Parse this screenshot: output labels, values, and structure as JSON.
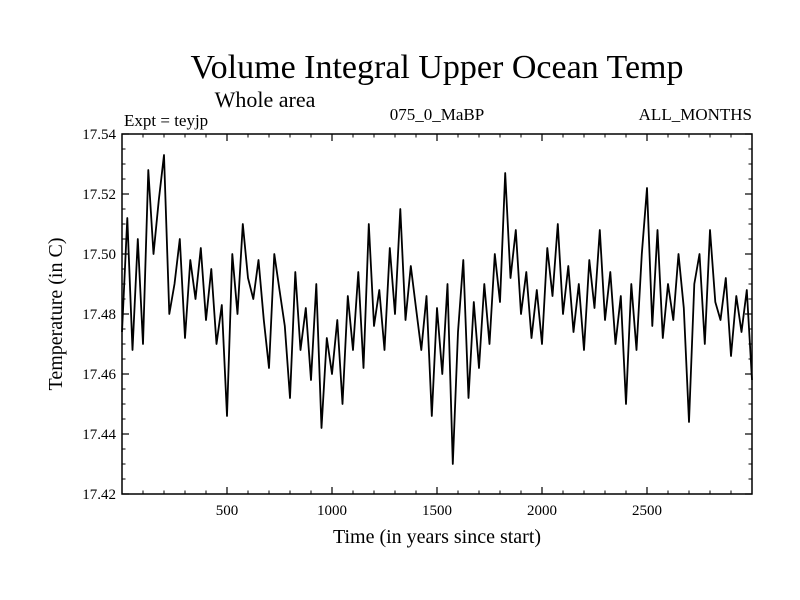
{
  "chart_data": {
    "type": "line",
    "title": "Volume Integral Upper Ocean Temp",
    "subtitle": "Whole area",
    "experiment_label": "Expt = teyjp",
    "period_label": "075_0_MaBP",
    "months_label": "ALL_MONTHS",
    "xlabel": "Time (in years since start)",
    "ylabel": "Temperature (in C)",
    "xlim": [
      0,
      3000
    ],
    "ylim": [
      17.42,
      17.54
    ],
    "x_ticks": [
      500,
      1000,
      1500,
      2000,
      2500
    ],
    "y_ticks": [
      "17.42",
      "17.44",
      "17.46",
      "17.48",
      "17.50",
      "17.52",
      "17.54"
    ],
    "series": [
      {
        "name": "Volume integral upper ocean temperature",
        "color": "#000000",
        "x": [
          0,
          25,
          50,
          75,
          100,
          125,
          150,
          175,
          200,
          225,
          250,
          275,
          300,
          325,
          350,
          375,
          400,
          425,
          450,
          475,
          500,
          525,
          550,
          575,
          600,
          625,
          650,
          675,
          700,
          725,
          750,
          775,
          800,
          825,
          850,
          875,
          900,
          925,
          950,
          975,
          1000,
          1025,
          1050,
          1075,
          1100,
          1125,
          1150,
          1175,
          1200,
          1225,
          1250,
          1275,
          1300,
          1325,
          1350,
          1375,
          1400,
          1425,
          1450,
          1475,
          1500,
          1525,
          1550,
          1575,
          1600,
          1625,
          1650,
          1675,
          1700,
          1725,
          1750,
          1775,
          1800,
          1825,
          1850,
          1875,
          1900,
          1925,
          1950,
          1975,
          2000,
          2025,
          2050,
          2075,
          2100,
          2125,
          2150,
          2175,
          2200,
          2225,
          2250,
          2275,
          2300,
          2325,
          2350,
          2375,
          2400,
          2425,
          2450,
          2475,
          2500,
          2525,
          2550,
          2575,
          2600,
          2625,
          2650,
          2675,
          2700,
          2725,
          2750,
          2775,
          2800,
          2825,
          2850,
          2875,
          2900,
          2925,
          2950,
          2975,
          3000
        ],
        "values": [
          17.474,
          17.512,
          17.468,
          17.505,
          17.47,
          17.528,
          17.5,
          17.518,
          17.533,
          17.48,
          17.49,
          17.505,
          17.472,
          17.498,
          17.485,
          17.502,
          17.478,
          17.495,
          17.47,
          17.483,
          17.446,
          17.5,
          17.48,
          17.51,
          17.492,
          17.485,
          17.498,
          17.478,
          17.462,
          17.5,
          17.488,
          17.476,
          17.452,
          17.494,
          17.468,
          17.482,
          17.458,
          17.49,
          17.442,
          17.472,
          17.46,
          17.478,
          17.45,
          17.486,
          17.468,
          17.494,
          17.462,
          17.51,
          17.476,
          17.488,
          17.468,
          17.502,
          17.48,
          17.515,
          17.478,
          17.496,
          17.482,
          17.468,
          17.486,
          17.446,
          17.482,
          17.46,
          17.49,
          17.43,
          17.474,
          17.498,
          17.452,
          17.484,
          17.462,
          17.49,
          17.47,
          17.5,
          17.484,
          17.527,
          17.492,
          17.508,
          17.48,
          17.494,
          17.472,
          17.488,
          17.47,
          17.502,
          17.486,
          17.51,
          17.48,
          17.496,
          17.474,
          17.49,
          17.468,
          17.498,
          17.482,
          17.508,
          17.478,
          17.494,
          17.47,
          17.486,
          17.45,
          17.49,
          17.468,
          17.5,
          17.522,
          17.476,
          17.508,
          17.472,
          17.49,
          17.478,
          17.5,
          17.482,
          17.444,
          17.49,
          17.5,
          17.47,
          17.508,
          17.484,
          17.478,
          17.492,
          17.466,
          17.486,
          17.474,
          17.488,
          17.458
        ]
      }
    ]
  }
}
